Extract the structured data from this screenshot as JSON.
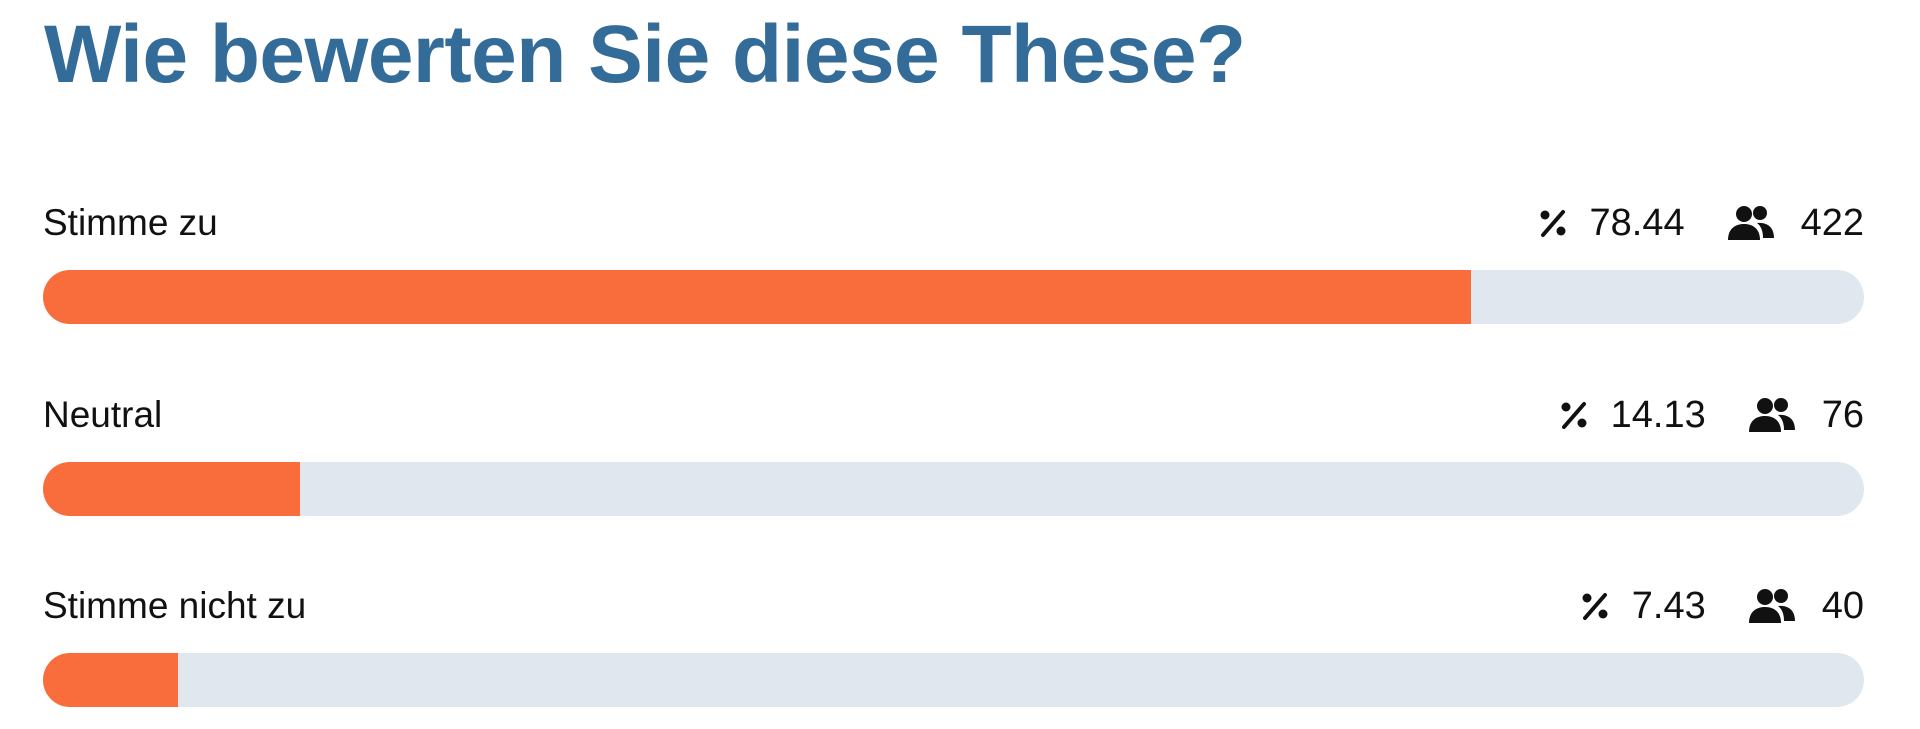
{
  "title": "Wie bewerten Sie diese These?",
  "rows": [
    {
      "label": "Stimme zu",
      "percent": 78.44,
      "count": 422
    },
    {
      "label": "Neutral",
      "percent": 14.13,
      "count": 76
    },
    {
      "label": "Stimme nicht zu",
      "percent": 7.43,
      "count": 40
    }
  ]
}
